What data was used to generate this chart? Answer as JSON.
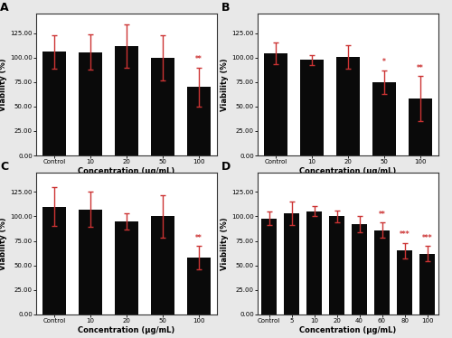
{
  "panels": [
    {
      "label": "A",
      "categories": [
        "Control",
        "10",
        "20",
        "50",
        "100"
      ],
      "values": [
        106.0,
        105.5,
        111.5,
        99.5,
        70.0
      ],
      "errors": [
        17.0,
        18.0,
        22.0,
        23.0,
        20.0
      ],
      "significance": [
        "",
        "",
        "",
        "",
        "**"
      ],
      "sig_yoffset": [
        0,
        0,
        0,
        0,
        3
      ],
      "xlabel": "Concentration (µg/mL)",
      "ylabel": "Viability (%)",
      "ylim": [
        0,
        145
      ],
      "yticks": [
        0,
        25,
        50,
        75,
        100,
        125
      ],
      "yticklabels": [
        "0.00",
        "25.00",
        "50.00",
        "75.00",
        "100.00",
        "125.00"
      ]
    },
    {
      "label": "B",
      "categories": [
        "Control",
        "10",
        "20",
        "50",
        "100"
      ],
      "values": [
        104.5,
        97.5,
        100.5,
        75.0,
        58.0
      ],
      "errors": [
        11.0,
        5.0,
        12.0,
        12.0,
        23.0
      ],
      "significance": [
        "",
        "",
        "",
        "*",
        "**"
      ],
      "sig_yoffset": [
        0,
        0,
        0,
        3,
        3
      ],
      "xlabel": "Concentration (µg/mL)",
      "ylabel": "Viability (%)",
      "ylim": [
        0,
        145
      ],
      "yticks": [
        0,
        25,
        50,
        75,
        100,
        125
      ],
      "yticklabels": [
        "0.00",
        "25.00",
        "50.00",
        "75.00",
        "100.00",
        "125.00"
      ]
    },
    {
      "label": "C",
      "categories": [
        "Control",
        "10",
        "20",
        "50",
        "100"
      ],
      "values": [
        110.0,
        107.0,
        95.0,
        100.0,
        58.0
      ],
      "errors": [
        20.0,
        18.0,
        8.0,
        22.0,
        12.0
      ],
      "significance": [
        "",
        "",
        "",
        "",
        "**"
      ],
      "sig_yoffset": [
        0,
        0,
        0,
        0,
        3
      ],
      "xlabel": "Concentration (µg/mL)",
      "ylabel": "Viability (%)",
      "ylim": [
        0,
        145
      ],
      "yticks": [
        0,
        25,
        50,
        75,
        100,
        125
      ],
      "yticklabels": [
        "0.00",
        "25.00",
        "50.00",
        "75.00",
        "100.00",
        "125.00"
      ]
    },
    {
      "label": "D",
      "categories": [
        "Control",
        "5",
        "10",
        "20",
        "40",
        "60",
        "80",
        "100"
      ],
      "values": [
        98.0,
        103.0,
        105.5,
        100.0,
        92.0,
        86.0,
        65.0,
        62.0
      ],
      "errors": [
        7.0,
        12.0,
        5.0,
        6.0,
        8.0,
        8.0,
        8.0,
        8.0
      ],
      "significance": [
        "",
        "",
        "",
        "",
        "",
        "**",
        "***",
        "***"
      ],
      "sig_yoffset": [
        0,
        0,
        0,
        0,
        0,
        3,
        3,
        3
      ],
      "xlabel": "Concentration (µg/mL)",
      "ylabel": "Viability (%)",
      "ylim": [
        0,
        145
      ],
      "yticks": [
        0,
        25,
        50,
        75,
        100,
        125
      ],
      "yticklabels": [
        "0.00",
        "25.00",
        "50.00",
        "75.00",
        "100.00",
        "125.00"
      ]
    }
  ],
  "bar_color": "#0a0a0a",
  "error_color": "#cc3333",
  "sig_color": "#cc3333",
  "background_color": "#ffffff",
  "axes_bg": "#ffffff",
  "figure_bg": "#e8e8e8"
}
